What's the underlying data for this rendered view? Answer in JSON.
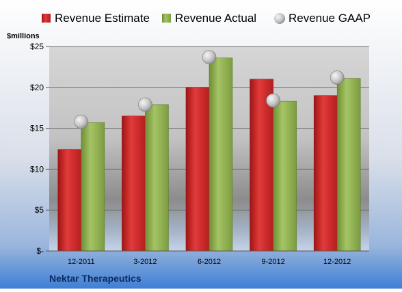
{
  "chart_data": {
    "type": "bar",
    "title": "",
    "ylabel": "$millions",
    "xlabel": "",
    "company": "Nektar Therapeutics",
    "categories": [
      "12-2011",
      "3-2012",
      "6-2012",
      "9-2012",
      "12-2012"
    ],
    "ylim": [
      0,
      25
    ],
    "yticks": [
      0,
      5,
      10,
      15,
      20,
      25
    ],
    "ytick_labels": [
      "$-",
      "$5",
      "$10",
      "$15",
      "$20",
      "$25"
    ],
    "grid": true,
    "legend_position": "top",
    "series": [
      {
        "name": "Revenue Estimate",
        "kind": "bar",
        "color": "#d42a2a",
        "values": [
          12.4,
          16.5,
          20.0,
          21.0,
          19.0
        ]
      },
      {
        "name": "Revenue Actual",
        "kind": "bar",
        "color": "#8cae4e",
        "values": [
          15.7,
          17.9,
          23.6,
          18.3,
          21.1
        ]
      },
      {
        "name": "Revenue GAAP",
        "kind": "marker",
        "color": "#c8c8c8",
        "values": [
          15.8,
          17.9,
          23.7,
          18.4,
          21.2
        ]
      }
    ]
  }
}
